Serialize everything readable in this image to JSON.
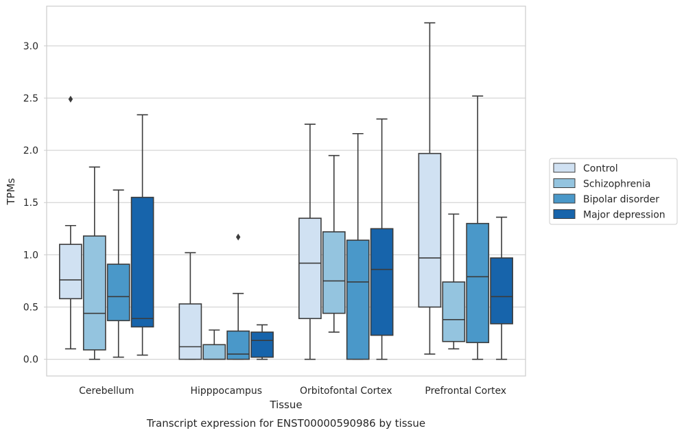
{
  "chart_data": {
    "type": "box",
    "caption": "Transcript expression for ENST00000590986 by tissue",
    "xlabel": "Tissue",
    "ylabel": "TPMs",
    "ylim": [
      -0.16,
      3.38
    ],
    "yticks": [
      0.0,
      0.5,
      1.0,
      1.5,
      2.0,
      2.5,
      3.0
    ],
    "ytick_labels": [
      "0.0",
      "0.5",
      "1.0",
      "1.5",
      "2.0",
      "2.5",
      "3.0"
    ],
    "grid": "horizontal",
    "legend_position": "right",
    "categories": [
      "Cerebellum",
      "Hipppocampus",
      "Orbitofontal Cortex",
      "Prefrontal Cortex"
    ],
    "series": [
      {
        "name": "Control",
        "color": "#d0e1f2",
        "boxes": [
          {
            "whislo": 0.1,
            "q1": 0.58,
            "med": 0.76,
            "q3": 1.1,
            "whishi": 1.28,
            "fliers": [
              2.49
            ]
          },
          {
            "whislo": 0.0,
            "q1": 0.0,
            "med": 0.12,
            "q3": 0.53,
            "whishi": 1.02,
            "fliers": []
          },
          {
            "whislo": 0.0,
            "q1": 0.39,
            "med": 0.92,
            "q3": 1.35,
            "whishi": 2.25,
            "fliers": []
          },
          {
            "whislo": 0.05,
            "q1": 0.5,
            "med": 0.97,
            "q3": 1.97,
            "whishi": 3.22,
            "fliers": []
          }
        ]
      },
      {
        "name": "Schizophrenia",
        "color": "#94c4df",
        "boxes": [
          {
            "whislo": 0.0,
            "q1": 0.09,
            "med": 0.44,
            "q3": 1.18,
            "whishi": 1.84,
            "fliers": []
          },
          {
            "whislo": 0.0,
            "q1": 0.0,
            "med": 0.0,
            "q3": 0.14,
            "whishi": 0.28,
            "fliers": []
          },
          {
            "whislo": 0.26,
            "q1": 0.44,
            "med": 0.75,
            "q3": 1.22,
            "whishi": 1.95,
            "fliers": []
          },
          {
            "whislo": 0.1,
            "q1": 0.17,
            "med": 0.38,
            "q3": 0.74,
            "whishi": 1.39,
            "fliers": []
          }
        ]
      },
      {
        "name": "Bipolar disorder",
        "color": "#4a98c9",
        "boxes": [
          {
            "whislo": 0.02,
            "q1": 0.37,
            "med": 0.6,
            "q3": 0.91,
            "whishi": 1.62,
            "fliers": []
          },
          {
            "whislo": 0.0,
            "q1": 0.0,
            "med": 0.05,
            "q3": 0.27,
            "whishi": 0.63,
            "fliers": [
              1.17
            ]
          },
          {
            "whislo": 0.0,
            "q1": 0.0,
            "med": 0.74,
            "q3": 1.14,
            "whishi": 2.16,
            "fliers": []
          },
          {
            "whislo": 0.0,
            "q1": 0.16,
            "med": 0.79,
            "q3": 1.3,
            "whishi": 2.52,
            "fliers": []
          }
        ]
      },
      {
        "name": "Major depression",
        "color": "#1764ab",
        "boxes": [
          {
            "whislo": 0.04,
            "q1": 0.31,
            "med": 0.39,
            "q3": 1.55,
            "whishi": 2.34,
            "fliers": []
          },
          {
            "whislo": 0.0,
            "q1": 0.02,
            "med": 0.18,
            "q3": 0.26,
            "whishi": 0.33,
            "fliers": []
          },
          {
            "whislo": 0.0,
            "q1": 0.23,
            "med": 0.86,
            "q3": 1.25,
            "whishi": 2.3,
            "fliers": []
          },
          {
            "whislo": 0.0,
            "q1": 0.34,
            "med": 0.6,
            "q3": 0.97,
            "whishi": 1.36,
            "fliers": []
          }
        ]
      }
    ]
  }
}
